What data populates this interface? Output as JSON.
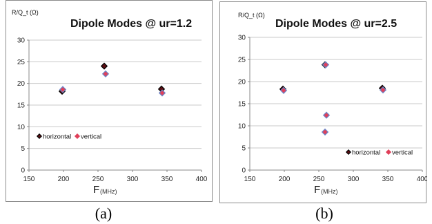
{
  "captions": [
    "(a)",
    "(b)"
  ],
  "colors": {
    "horizontal_fill": "#5a0e12",
    "horizontal_edge": "#000000",
    "vertical_fill": "#e0405a",
    "vertical_edge": "#6a86c8",
    "grid": "#c8c8c8",
    "axis": "#888888"
  },
  "chart_data": [
    {
      "type": "scatter",
      "title": "Dipole Modes @ ur=1.2",
      "ylabel": "R/Q_t (Ω)",
      "xlabel_main": "F",
      "xlabel_unit": "(MHz)",
      "xlim": [
        150,
        400
      ],
      "ylim": [
        0,
        30
      ],
      "xticks": [
        150,
        200,
        250,
        300,
        350,
        400
      ],
      "yticks": [
        0,
        5,
        10,
        15,
        20,
        25,
        30
      ],
      "grid": true,
      "legend_position": "lower-left",
      "series": [
        {
          "name": "horizontal",
          "points": [
            [
              198,
              18.2
            ],
            [
              259,
              24.0
            ],
            [
              342,
              18.7
            ]
          ]
        },
        {
          "name": "vertical",
          "points": [
            [
              199,
              18.6
            ],
            [
              261,
              22.2
            ],
            [
              343,
              17.8
            ]
          ]
        }
      ]
    },
    {
      "type": "scatter",
      "title": "Dipole Modes @ ur=2.5",
      "ylabel": "R/Q_t (Ω)",
      "xlabel_main": "F",
      "xlabel_unit": "(MHz)",
      "xlim": [
        150,
        400
      ],
      "ylim": [
        0,
        30
      ],
      "xticks": [
        150,
        200,
        250,
        300,
        350,
        400
      ],
      "yticks": [
        0,
        5,
        10,
        15,
        20,
        25,
        30
      ],
      "grid": true,
      "legend_position": "lower-right",
      "series": [
        {
          "name": "horizontal",
          "points": [
            [
              198,
              18.3
            ],
            [
              259,
              23.8
            ],
            [
              342,
              18.5
            ]
          ]
        },
        {
          "name": "vertical",
          "points": [
            [
              199,
              18.0
            ],
            [
              260,
              23.8
            ],
            [
              261,
              12.4
            ],
            [
              259,
              8.6
            ],
            [
              343,
              18.1
            ]
          ]
        }
      ]
    }
  ]
}
